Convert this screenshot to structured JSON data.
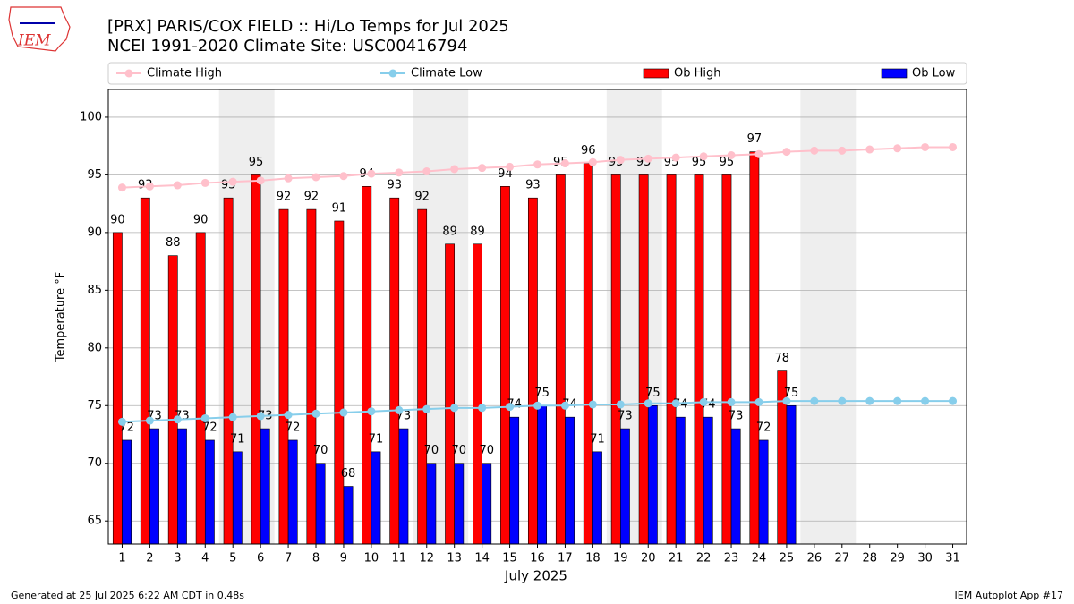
{
  "chart_data": {
    "type": "bar",
    "title": "[PRX] PARIS/COX FIELD :: Hi/Lo Temps for Jul 2025",
    "subtitle": "NCEI 1991-2020 Climate Site: USC00416794",
    "logo_text": "IEM",
    "xlabel": "July 2025",
    "ylabel": "Temperature °F",
    "footer_left": "Generated at 25 Jul 2025 6:22 AM CDT in 0.48s",
    "footer_right": "IEM Autoplot App #17",
    "x": [
      1,
      2,
      3,
      4,
      5,
      6,
      7,
      8,
      9,
      10,
      11,
      12,
      13,
      14,
      15,
      16,
      17,
      18,
      19,
      20,
      21,
      22,
      23,
      24,
      25,
      26,
      27,
      28,
      29,
      30,
      31
    ],
    "xlim": [
      0.5,
      31.5
    ],
    "xticks": [
      1,
      2,
      3,
      4,
      5,
      6,
      7,
      8,
      9,
      10,
      11,
      12,
      13,
      14,
      15,
      16,
      17,
      18,
      19,
      20,
      21,
      22,
      23,
      24,
      25,
      26,
      27,
      28,
      29,
      30,
      31
    ],
    "ylim": [
      63,
      102.4
    ],
    "yticks": [
      65,
      70,
      75,
      80,
      85,
      90,
      95,
      100
    ],
    "grid": true,
    "shaded_days": [
      [
        5,
        6
      ],
      [
        12,
        13
      ],
      [
        19,
        20
      ],
      [
        26,
        27
      ]
    ],
    "shade_color": "#eeeeee",
    "series": [
      {
        "name": "Climate High",
        "kind": "line",
        "color": "#ffc0cb",
        "values": [
          93.9,
          94.0,
          94.1,
          94.3,
          94.4,
          94.5,
          94.7,
          94.8,
          94.9,
          95.1,
          95.2,
          95.3,
          95.5,
          95.6,
          95.7,
          95.9,
          96.0,
          96.1,
          96.3,
          96.4,
          96.5,
          96.6,
          96.7,
          96.8,
          97.0,
          97.1,
          97.1,
          97.2,
          97.3,
          97.4,
          97.4
        ]
      },
      {
        "name": "Climate Low",
        "kind": "line",
        "color": "#87ceeb",
        "values": [
          73.6,
          73.7,
          73.8,
          73.9,
          74.0,
          74.1,
          74.2,
          74.3,
          74.4,
          74.5,
          74.6,
          74.7,
          74.8,
          74.8,
          74.9,
          75.0,
          75.0,
          75.1,
          75.1,
          75.2,
          75.2,
          75.3,
          75.3,
          75.3,
          75.4,
          75.4,
          75.4,
          75.4,
          75.4,
          75.4,
          75.4
        ]
      },
      {
        "name": "Ob High",
        "kind": "bar",
        "color": "#ff0000",
        "values": [
          90,
          93,
          88,
          90,
          93,
          95,
          92,
          92,
          91,
          94,
          93,
          92,
          89,
          89,
          94,
          93,
          95,
          96,
          95,
          95,
          95,
          95,
          95,
          97,
          78,
          null,
          null,
          null,
          null,
          null,
          null
        ]
      },
      {
        "name": "Ob Low",
        "kind": "bar",
        "color": "#0000ff",
        "values": [
          72,
          73,
          73,
          72,
          71,
          73,
          72,
          70,
          68,
          71,
          73,
          70,
          70,
          70,
          74,
          75,
          74,
          71,
          73,
          75,
          74,
          74,
          73,
          72,
          75,
          null,
          null,
          null,
          null,
          null,
          null
        ]
      }
    ]
  }
}
